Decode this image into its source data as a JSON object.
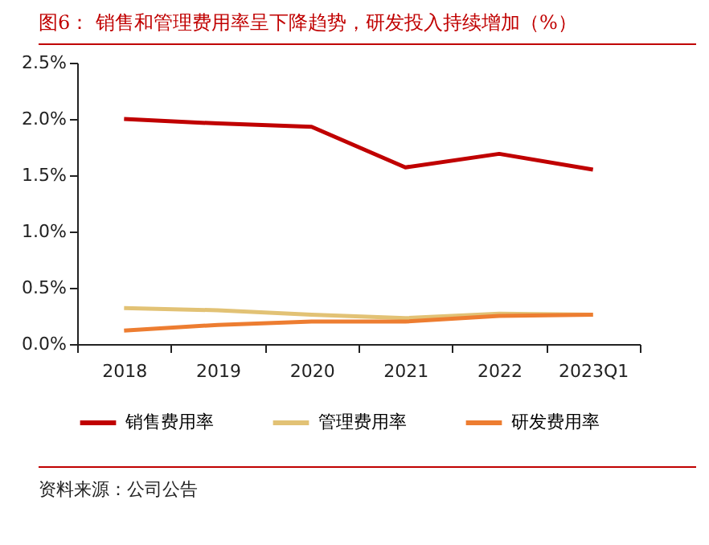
{
  "chart_data": {
    "type": "line",
    "title": "图6：  销售和管理费用率呈下降趋势，研发投入持续增加（%）",
    "categories": [
      "2018",
      "2019",
      "2020",
      "2021",
      "2022",
      "2023Q1"
    ],
    "series": [
      {
        "name": "销售费用率",
        "color": "#c00000",
        "values": [
          2.0,
          1.96,
          1.93,
          1.57,
          1.69,
          1.55
        ]
      },
      {
        "name": "管理费用率",
        "color": "#e2c275",
        "values": [
          0.32,
          0.3,
          0.26,
          0.23,
          0.27,
          0.26
        ]
      },
      {
        "name": "研发费用率",
        "color": "#ed7d31",
        "values": [
          0.12,
          0.17,
          0.2,
          0.2,
          0.25,
          0.26
        ]
      }
    ],
    "ylim": [
      0,
      2.5
    ],
    "yticks": [
      {
        "value": 0,
        "label": "0.0%"
      },
      {
        "value": 0.5,
        "label": "0.5%"
      },
      {
        "value": 1,
        "label": "1.0%"
      },
      {
        "value": 1.5,
        "label": "1.5%"
      },
      {
        "value": 2,
        "label": "2.0%"
      },
      {
        "value": 2.5,
        "label": "2.5%"
      }
    ],
    "grid": false,
    "legend": "bottom",
    "marker": "none",
    "line_style": "solid",
    "annotations": [
      "资料来源：公司公告"
    ]
  }
}
